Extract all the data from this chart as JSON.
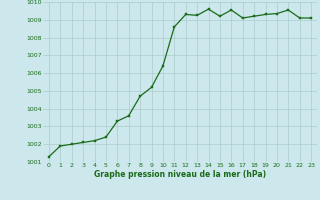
{
  "x": [
    0,
    1,
    2,
    3,
    4,
    5,
    6,
    7,
    8,
    9,
    10,
    11,
    12,
    13,
    14,
    15,
    16,
    17,
    18,
    19,
    20,
    21,
    22,
    23
  ],
  "y": [
    1001.3,
    1001.9,
    1002.0,
    1002.1,
    1002.2,
    1002.4,
    1003.3,
    1003.6,
    1004.7,
    1005.2,
    1006.4,
    1008.6,
    1009.3,
    1009.25,
    1009.6,
    1009.2,
    1009.55,
    1009.1,
    1009.2,
    1009.3,
    1009.35,
    1009.55,
    1009.1,
    1009.1
  ],
  "ylim": [
    1001,
    1010
  ],
  "xlim": [
    -0.5,
    23.5
  ],
  "yticks": [
    1001,
    1002,
    1003,
    1004,
    1005,
    1006,
    1007,
    1008,
    1009,
    1010
  ],
  "xticks": [
    0,
    1,
    2,
    3,
    4,
    5,
    6,
    7,
    8,
    9,
    10,
    11,
    12,
    13,
    14,
    15,
    16,
    17,
    18,
    19,
    20,
    21,
    22,
    23
  ],
  "line_color": "#1a6b1a",
  "marker_color": "#1a6b1a",
  "bg_color": "#cce8ec",
  "grid_color": "#aacccc",
  "xlabel": "Graphe pression niveau de la mer (hPa)",
  "xlabel_color": "#1a6b1a",
  "tick_color": "#1a6b1a"
}
